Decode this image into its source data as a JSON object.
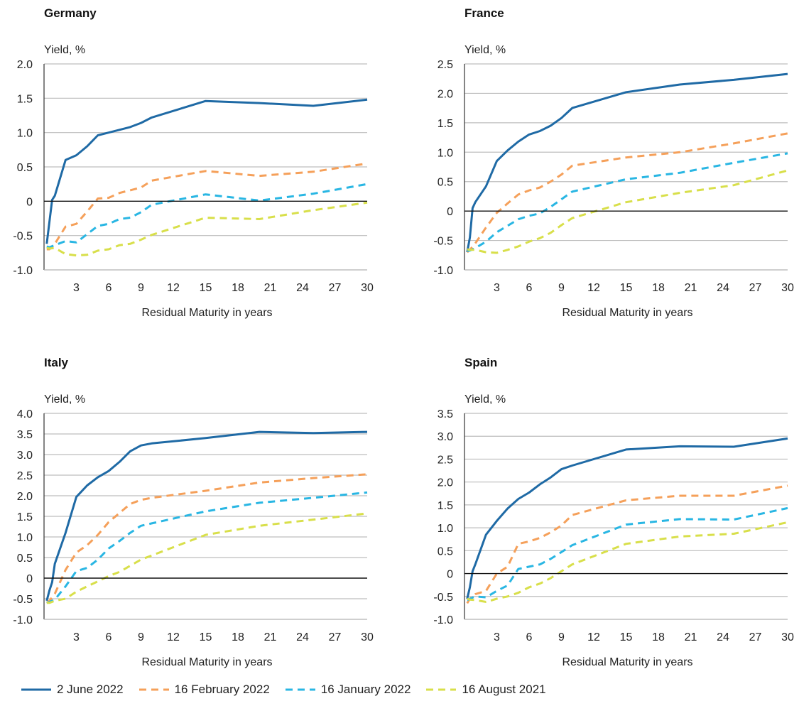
{
  "chart_data": [
    {
      "type": "line",
      "title": "Germany",
      "ylabel": "Yield, %",
      "xlabel": "Residual Maturity in years",
      "ylim": [
        -1.0,
        2.0
      ],
      "yticks": [
        -1.0,
        -0.5,
        0,
        0.5,
        1.0,
        1.5,
        2.0
      ],
      "ytick_labels": [
        "-1.0",
        "-0.5",
        "0",
        "0.5",
        "1.0",
        "1.5",
        "2.0"
      ],
      "xlim": [
        0,
        30
      ],
      "xticks": [
        3,
        6,
        9,
        12,
        15,
        18,
        21,
        24,
        27,
        30
      ],
      "xtick_labels": [
        "3",
        "6",
        "9",
        "12",
        "15",
        "18",
        "21",
        "24",
        "27",
        "30"
      ],
      "series": [
        {
          "name": "2 June 2022",
          "x": [
            0.25,
            0.5,
            0.75,
            1,
            2,
            3,
            4,
            5,
            6,
            7,
            8,
            9,
            10,
            15,
            20,
            25,
            30
          ],
          "y": [
            -0.62,
            -0.3,
            0.02,
            0.08,
            0.6,
            0.67,
            0.8,
            0.96,
            1.0,
            1.04,
            1.08,
            1.14,
            1.22,
            1.46,
            1.43,
            1.39,
            1.48
          ]
        },
        {
          "name": "16 February 2022",
          "x": [
            0.25,
            0.5,
            1,
            2,
            3,
            4,
            5,
            6,
            7,
            8,
            9,
            10,
            15,
            20,
            25,
            30
          ],
          "y": [
            -0.7,
            -0.7,
            -0.62,
            -0.37,
            -0.33,
            -0.15,
            0.04,
            0.05,
            0.12,
            0.16,
            0.2,
            0.3,
            0.44,
            0.37,
            0.43,
            0.55
          ]
        },
        {
          "name": "16 January 2022",
          "x": [
            0.25,
            0.5,
            1,
            2,
            3,
            4,
            5,
            6,
            7,
            8,
            9,
            10,
            15,
            20,
            25,
            30
          ],
          "y": [
            -0.66,
            -0.67,
            -0.64,
            -0.58,
            -0.6,
            -0.48,
            -0.36,
            -0.33,
            -0.26,
            -0.24,
            -0.16,
            -0.05,
            0.1,
            0.01,
            0.11,
            0.25
          ]
        },
        {
          "name": "16 August 2021",
          "x": [
            0.25,
            0.5,
            1,
            2,
            3,
            4,
            5,
            6,
            7,
            8,
            9,
            10,
            15,
            20,
            25,
            30
          ],
          "y": [
            -0.68,
            -0.69,
            -0.68,
            -0.77,
            -0.79,
            -0.78,
            -0.72,
            -0.7,
            -0.64,
            -0.62,
            -0.56,
            -0.49,
            -0.24,
            -0.26,
            -0.13,
            -0.02
          ]
        }
      ]
    },
    {
      "type": "line",
      "title": "France",
      "ylabel": "Yield, %",
      "xlabel": "Residual Maturity in years",
      "ylim": [
        -1.0,
        2.5
      ],
      "yticks": [
        -1.0,
        -0.5,
        0,
        0.5,
        1.0,
        1.5,
        2.0,
        2.5
      ],
      "ytick_labels": [
        "-1.0",
        "-0.5",
        "0",
        "0.5",
        "1.0",
        "1.5",
        "2.0",
        "2.5"
      ],
      "xlim": [
        0,
        30
      ],
      "xticks": [
        3,
        6,
        9,
        12,
        15,
        18,
        21,
        24,
        27,
        30
      ],
      "xtick_labels": [
        "3",
        "6",
        "9",
        "12",
        "15",
        "18",
        "21",
        "24",
        "27",
        "30"
      ],
      "series": [
        {
          "name": "2 June 2022",
          "x": [
            0.25,
            0.5,
            0.75,
            1,
            2,
            3,
            4,
            5,
            6,
            7,
            8,
            9,
            10,
            15,
            20,
            25,
            30
          ],
          "y": [
            -0.7,
            -0.45,
            0.05,
            0.15,
            0.42,
            0.85,
            1.03,
            1.18,
            1.3,
            1.36,
            1.45,
            1.58,
            1.75,
            2.02,
            2.15,
            2.23,
            2.33
          ]
        },
        {
          "name": "16 February 2022",
          "x": [
            0.25,
            0.5,
            1,
            2,
            3,
            4,
            5,
            6,
            7,
            8,
            9,
            10,
            15,
            20,
            25,
            30
          ],
          "y": [
            -0.7,
            -0.66,
            -0.55,
            -0.28,
            -0.03,
            0.13,
            0.28,
            0.35,
            0.4,
            0.5,
            0.62,
            0.77,
            0.91,
            1.0,
            1.15,
            1.32
          ]
        },
        {
          "name": "16 January 2022",
          "x": [
            0.25,
            0.5,
            1,
            2,
            3,
            4,
            5,
            6,
            7,
            8,
            9,
            10,
            15,
            20,
            25,
            30
          ],
          "y": [
            -0.68,
            -0.67,
            -0.63,
            -0.52,
            -0.36,
            -0.25,
            -0.14,
            -0.08,
            -0.04,
            0.07,
            0.2,
            0.33,
            0.54,
            0.65,
            0.82,
            0.98
          ]
        },
        {
          "name": "16 August 2021",
          "x": [
            0.25,
            0.5,
            1,
            2,
            3,
            4,
            5,
            6,
            7,
            8,
            9,
            10,
            15,
            20,
            25,
            30
          ],
          "y": [
            -0.65,
            -0.66,
            -0.66,
            -0.7,
            -0.71,
            -0.66,
            -0.6,
            -0.52,
            -0.46,
            -0.37,
            -0.24,
            -0.12,
            0.15,
            0.31,
            0.44,
            0.69
          ]
        }
      ]
    },
    {
      "type": "line",
      "title": "Italy",
      "ylabel": "Yield, %",
      "xlabel": "Residual Maturity in years",
      "ylim": [
        -1.0,
        4.0
      ],
      "yticks": [
        -1.0,
        -0.5,
        0,
        0.5,
        1.0,
        1.5,
        2.0,
        2.5,
        3.0,
        3.5,
        4.0
      ],
      "ytick_labels": [
        "-1.0",
        "-0.5",
        "0",
        "0.5",
        "1.0",
        "1.5",
        "2.0",
        "2.5",
        "3.0",
        "3.5",
        "4.0"
      ],
      "xlim": [
        0,
        30
      ],
      "xticks": [
        3,
        6,
        9,
        12,
        15,
        18,
        21,
        24,
        27,
        30
      ],
      "xtick_labels": [
        "3",
        "6",
        "9",
        "12",
        "15",
        "18",
        "21",
        "24",
        "27",
        "30"
      ],
      "series": [
        {
          "name": "2 June 2022",
          "x": [
            0.25,
            0.5,
            0.75,
            1,
            2,
            3,
            4,
            5,
            6,
            7,
            8,
            9,
            10,
            15,
            20,
            25,
            30
          ],
          "y": [
            -0.55,
            -0.3,
            -0.1,
            0.35,
            1.1,
            1.97,
            2.25,
            2.45,
            2.6,
            2.82,
            3.08,
            3.22,
            3.27,
            3.4,
            3.55,
            3.52,
            3.55
          ]
        },
        {
          "name": "16 February 2022",
          "x": [
            0.25,
            0.5,
            1,
            2,
            3,
            4,
            5,
            6,
            7,
            8,
            9,
            10,
            15,
            20,
            25,
            30
          ],
          "y": [
            -0.6,
            -0.55,
            -0.38,
            0.2,
            0.62,
            0.8,
            1.05,
            1.36,
            1.58,
            1.8,
            1.9,
            1.95,
            2.12,
            2.32,
            2.43,
            2.52
          ]
        },
        {
          "name": "16 January 2022",
          "x": [
            0.25,
            0.5,
            1,
            2,
            3,
            4,
            5,
            6,
            7,
            8,
            9,
            10,
            15,
            20,
            25,
            30
          ],
          "y": [
            -0.6,
            -0.58,
            -0.52,
            -0.2,
            0.17,
            0.25,
            0.45,
            0.72,
            0.9,
            1.1,
            1.27,
            1.33,
            1.62,
            1.83,
            1.95,
            2.08
          ]
        },
        {
          "name": "16 August 2021",
          "x": [
            0.25,
            0.5,
            1,
            2,
            3,
            4,
            5,
            6,
            7,
            8,
            9,
            10,
            15,
            20,
            25,
            30
          ],
          "y": [
            -0.6,
            -0.6,
            -0.55,
            -0.5,
            -0.33,
            -0.2,
            -0.08,
            0.05,
            0.15,
            0.3,
            0.45,
            0.55,
            1.05,
            1.27,
            1.42,
            1.57
          ]
        }
      ]
    },
    {
      "type": "line",
      "title": "Spain",
      "ylabel": "Yield, %",
      "xlabel": "Residual Maturity in years",
      "ylim": [
        -1.0,
        3.5
      ],
      "yticks": [
        -1.0,
        -0.5,
        0,
        0.5,
        1.0,
        1.5,
        2.0,
        2.5,
        3.0,
        3.5
      ],
      "ytick_labels": [
        "-1.0",
        "-0.5",
        "0",
        "0.5",
        "1.0",
        "1.5",
        "2.0",
        "2.5",
        "3.0",
        "3.5"
      ],
      "xlim": [
        0,
        30
      ],
      "xticks": [
        3,
        6,
        9,
        12,
        15,
        18,
        21,
        24,
        27,
        30
      ],
      "xtick_labels": [
        "3",
        "6",
        "9",
        "12",
        "15",
        "18",
        "21",
        "24",
        "27",
        "30"
      ],
      "series": [
        {
          "name": "2 June 2022",
          "x": [
            0.25,
            0.5,
            0.75,
            1,
            2,
            3,
            4,
            5,
            6,
            7,
            8,
            9,
            10,
            15,
            20,
            25,
            30
          ],
          "y": [
            -0.55,
            -0.3,
            0.05,
            0.2,
            0.85,
            1.15,
            1.42,
            1.63,
            1.77,
            1.95,
            2.1,
            2.28,
            2.36,
            2.71,
            2.78,
            2.77,
            2.95
          ]
        },
        {
          "name": "16 February 2022",
          "x": [
            0.25,
            0.5,
            1,
            2,
            3,
            4,
            5,
            6,
            7,
            8,
            9,
            10,
            15,
            20,
            25,
            30
          ],
          "y": [
            -0.65,
            -0.55,
            -0.45,
            -0.38,
            0.0,
            0.15,
            0.65,
            0.7,
            0.78,
            0.9,
            1.05,
            1.28,
            1.6,
            1.7,
            1.7,
            1.92
          ]
        },
        {
          "name": "16 January 2022",
          "x": [
            0.25,
            0.5,
            1,
            2,
            3,
            4,
            5,
            6,
            7,
            8,
            9,
            10,
            15,
            20,
            25,
            30
          ],
          "y": [
            -0.58,
            -0.55,
            -0.5,
            -0.52,
            -0.38,
            -0.26,
            0.1,
            0.15,
            0.2,
            0.32,
            0.47,
            0.62,
            1.07,
            1.19,
            1.18,
            1.43
          ]
        },
        {
          "name": "16 August 2021",
          "x": [
            0.25,
            0.5,
            1,
            2,
            3,
            4,
            5,
            6,
            7,
            8,
            9,
            10,
            15,
            20,
            25,
            30
          ],
          "y": [
            -0.55,
            -0.57,
            -0.58,
            -0.62,
            -0.55,
            -0.5,
            -0.42,
            -0.3,
            -0.22,
            -0.1,
            0.05,
            0.2,
            0.65,
            0.81,
            0.87,
            1.12
          ]
        }
      ]
    }
  ],
  "legend": [
    {
      "label": "2 June 2022",
      "color": "#1f6aa5",
      "dash": "solid"
    },
    {
      "label": "16 February 2022",
      "color": "#f5a05a",
      "dash": "dashed"
    },
    {
      "label": "16 January 2022",
      "color": "#29b6e3",
      "dash": "dashed"
    },
    {
      "label": "16 August 2021",
      "color": "#d8df4a",
      "dash": "dashed"
    }
  ]
}
